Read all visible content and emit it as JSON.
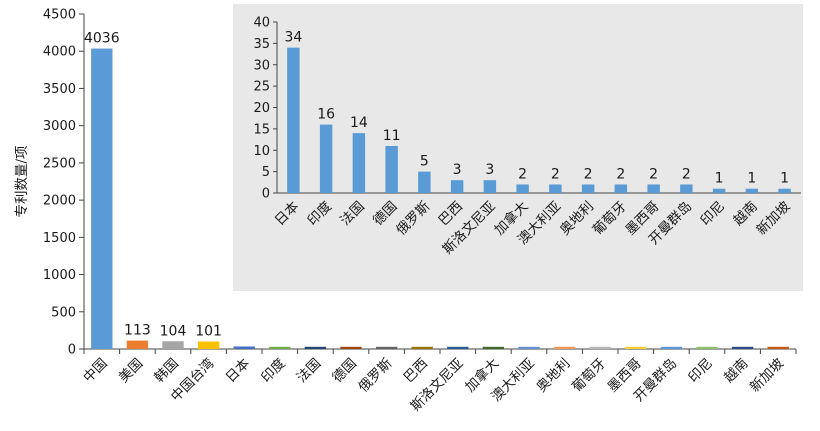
{
  "chart_data": [
    {
      "type": "bar",
      "ylabel": "专利数量/项",
      "ylim": [
        0,
        4500
      ],
      "yticks": [
        0,
        500,
        1000,
        1500,
        2000,
        2500,
        3000,
        3500,
        4000,
        4500
      ],
      "grid": false,
      "categories": [
        "中国",
        "美国",
        "韩国",
        "中国台湾",
        "日本",
        "印度",
        "法国",
        "德国",
        "俄罗斯",
        "巴西",
        "斯洛文尼亚",
        "加拿大",
        "澳大利亚",
        "奥地利",
        "葡萄牙",
        "墨西哥",
        "开曼群岛",
        "印尼",
        "越南",
        "新加坡"
      ],
      "values": [
        4036,
        113,
        104,
        101,
        34,
        16,
        14,
        11,
        5,
        3,
        3,
        2,
        2,
        2,
        2,
        2,
        2,
        1,
        1,
        1
      ],
      "data_labels": [
        "4036",
        "113",
        "104",
        "101",
        "",
        "",
        "",
        "",
        "",
        "",
        "",
        "",
        "",
        "",
        "",
        "",
        "",
        "",
        "",
        ""
      ],
      "colors": [
        "#5b9bd5",
        "#ed7d31",
        "#a5a5a5",
        "#ffc000",
        "#4472c4",
        "#70ad47",
        "#264478",
        "#9e480e",
        "#636363",
        "#997300",
        "#255e91",
        "#43682b",
        "#698ed0",
        "#f1975a",
        "#b7b7b7",
        "#ffcd33",
        "#5b9bd5",
        "#8cc168",
        "#2e4c87",
        "#c55a11"
      ]
    },
    {
      "type": "bar",
      "inset": true,
      "ylim": [
        0,
        40
      ],
      "yticks": [
        0,
        5,
        10,
        15,
        20,
        25,
        30,
        35,
        40
      ],
      "grid": false,
      "background": "#e8e8e8",
      "color": "#5b9bd5",
      "categories": [
        "日本",
        "印度",
        "法国",
        "德国",
        "俄罗斯",
        "巴西",
        "斯洛文尼亚",
        "加拿大",
        "澳大利亚",
        "奥地利",
        "葡萄牙",
        "墨西哥",
        "开曼群岛",
        "印尼",
        "越南",
        "新加坡"
      ],
      "values": [
        34,
        16,
        14,
        11,
        5,
        3,
        3,
        2,
        2,
        2,
        2,
        2,
        2,
        1,
        1,
        1
      ],
      "data_labels": [
        "34",
        "16",
        "14",
        "11",
        "5",
        "3",
        "3",
        "2",
        "2",
        "2",
        "2",
        "2",
        "2",
        "1",
        "1",
        "1"
      ]
    }
  ]
}
